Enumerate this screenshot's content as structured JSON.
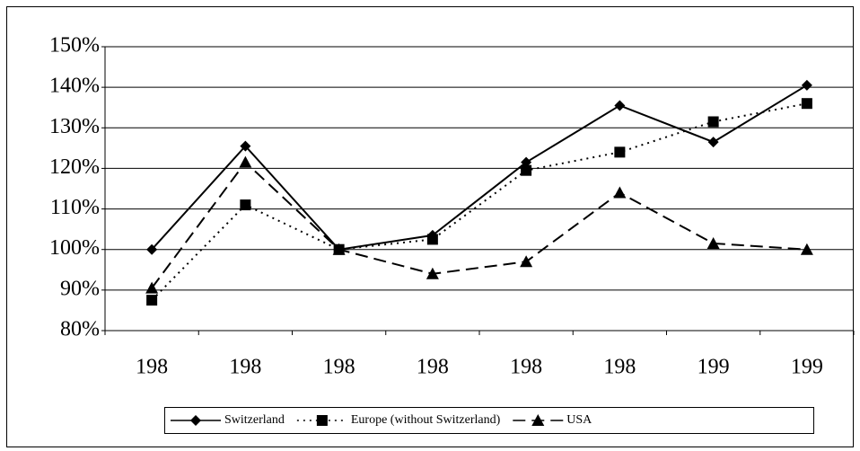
{
  "chart_data": {
    "type": "line",
    "categories": [
      "198",
      "198",
      "198",
      "198",
      "198",
      "198",
      "199",
      "199"
    ],
    "series": [
      {
        "name": "Switzerland",
        "color": "#000000",
        "linestyle": "solid",
        "marker": "diamond",
        "values": [
          100,
          125.5,
          100,
          103.5,
          121.5,
          135.5,
          126.5,
          140.5
        ]
      },
      {
        "name": "Europe (without Switzerland)",
        "color": "#000000",
        "linestyle": "dotted",
        "marker": "square",
        "values": [
          87.5,
          111,
          100,
          102.5,
          119.5,
          124,
          131.5,
          136
        ]
      },
      {
        "name": "USA",
        "color": "#000000",
        "linestyle": "dashed",
        "marker": "triangle",
        "values": [
          90.5,
          121.5,
          100,
          94,
          97,
          114,
          101.5,
          100
        ]
      }
    ],
    "ylim": [
      80,
      150
    ],
    "yticks": [
      {
        "value": 80,
        "label": "80%"
      },
      {
        "value": 90,
        "label": "90%"
      },
      {
        "value": 100,
        "label": "100%"
      },
      {
        "value": 110,
        "label": "110%"
      },
      {
        "value": 120,
        "label": "120%"
      },
      {
        "value": 130,
        "label": "130%"
      },
      {
        "value": 140,
        "label": "140%"
      },
      {
        "value": 150,
        "label": "150%"
      }
    ],
    "grid": true,
    "legend": "bottom"
  }
}
